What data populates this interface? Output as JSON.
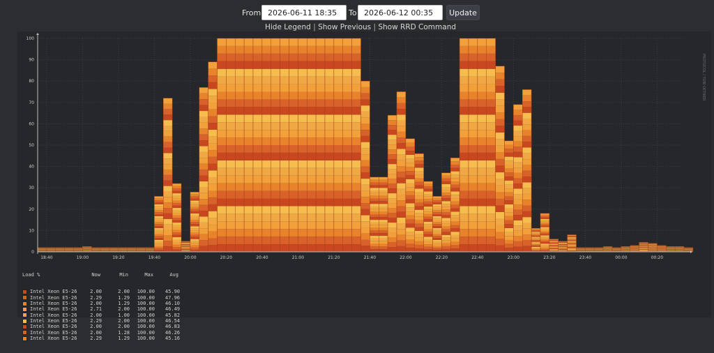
{
  "toolbar": {
    "from_label": "From",
    "from_value": "2026-06-11 18:35",
    "to_label": "To",
    "to_value": "2026-06-12 00:35",
    "update_label": "Update"
  },
  "links": {
    "hide_legend": "Hide Legend",
    "show_previous": "Show Previous",
    "show_rrd": "Show RRD Command",
    "separator": "|"
  },
  "watermark": "PROTOCOL / TOBI OETIKER",
  "legend": {
    "headers": [
      "Load %",
      "Now",
      "Min",
      "Max",
      "Avg"
    ],
    "rows": [
      {
        "name": "Intel Xeon E5-26",
        "now": "2.00",
        "min": "2.00",
        "max": "100.00",
        "avg": "45.90"
      },
      {
        "name": "Intel Xeon E5-26",
        "now": "2.29",
        "min": "1.29",
        "max": "100.00",
        "avg": "47.96"
      },
      {
        "name": "Intel Xeon E5-26",
        "now": "2.00",
        "min": "1.29",
        "max": "100.00",
        "avg": "46.10"
      },
      {
        "name": "Intel Xeon E5-26",
        "now": "2.71",
        "min": "2.00",
        "max": "100.00",
        "avg": "46.49"
      },
      {
        "name": "Intel Xeon E5-26",
        "now": "2.00",
        "min": "1.00",
        "max": "100.00",
        "avg": "45.82"
      },
      {
        "name": "Intel Xeon E5-26",
        "now": "2.29",
        "min": "2.00",
        "max": "100.00",
        "avg": "46.54"
      },
      {
        "name": "Intel Xeon E5-26",
        "now": "2.00",
        "min": "2.00",
        "max": "100.00",
        "avg": "46.83"
      },
      {
        "name": "Intel Xeon E5-26",
        "now": "2.00",
        "min": "1.28",
        "max": "100.00",
        "avg": "46.26"
      },
      {
        "name": "Intel Xeon E5-26",
        "now": "2.29",
        "min": "1.29",
        "max": "100.00",
        "avg": "45.16"
      }
    ]
  },
  "chart_data": {
    "type": "area",
    "stacked": true,
    "ylabel": "",
    "xlabel": "",
    "ylim": [
      0,
      100
    ],
    "y_ticks": [
      0,
      10,
      20,
      30,
      40,
      50,
      60,
      70,
      80,
      90,
      100
    ],
    "x_ticks": [
      "18:40",
      "19:00",
      "19:20",
      "19:40",
      "20:00",
      "20:20",
      "20:40",
      "21:00",
      "21:20",
      "21:40",
      "22:00",
      "22:20",
      "22:40",
      "23:00",
      "23:20",
      "23:40",
      "00:00",
      "00:20"
    ],
    "x_start": "18:35",
    "x_end": "00:35",
    "interval_minutes": 5,
    "series_count": 28,
    "series_colors": [
      "#c8471e",
      "#d9612a",
      "#e8832c",
      "#f2a03a",
      "#f0a845",
      "#f6bd4e"
    ],
    "totals": [
      2,
      2,
      2,
      2,
      2,
      2.5,
      2,
      2,
      2,
      2,
      2,
      2,
      2,
      26,
      72,
      32,
      5,
      28,
      77,
      89,
      100,
      100,
      100,
      100,
      100,
      100,
      100,
      100,
      100,
      100,
      100,
      100,
      100,
      100,
      100,
      100,
      80,
      35,
      35,
      64,
      75,
      53,
      46,
      33,
      26,
      37,
      44,
      100,
      100,
      100,
      100,
      87,
      52,
      69,
      76,
      11,
      18,
      6,
      5,
      8,
      2,
      2,
      2,
      2.5,
      2,
      2.5,
      3,
      4.5,
      4,
      3,
      2.5,
      2.5,
      2
    ]
  }
}
